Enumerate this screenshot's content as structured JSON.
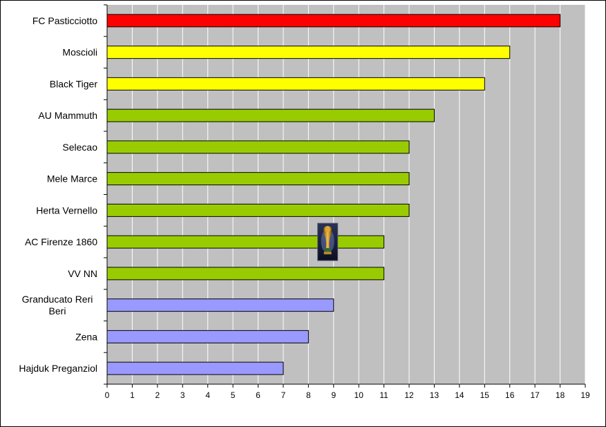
{
  "chart_data": {
    "type": "bar",
    "orientation": "horizontal",
    "title": "",
    "xlabel": "",
    "ylabel": "",
    "categories": [
      "FC Pasticciotto",
      "Moscioli",
      "Black Tiger",
      "AU Mammuth",
      "Selecao",
      "Mele Marce",
      "Herta Vernello",
      "AC Firenze 1860",
      "VV NN",
      "Granducato Reri Beri",
      "Zena",
      "Hajduk Preganziol"
    ],
    "category_lines": [
      [
        "FC Pasticciotto"
      ],
      [
        "Moscioli"
      ],
      [
        "Black Tiger"
      ],
      [
        "AU Mammuth"
      ],
      [
        "Selecao"
      ],
      [
        "Mele Marce"
      ],
      [
        "Herta Vernello"
      ],
      [
        "AC Firenze 1860"
      ],
      [
        "VV NN"
      ],
      [
        "Granducato Reri",
        "Beri"
      ],
      [
        "Zena"
      ],
      [
        "Hajduk Preganziol"
      ]
    ],
    "values": [
      18,
      16,
      15,
      13,
      12,
      12,
      12,
      11,
      11,
      9,
      8,
      7
    ],
    "bar_colors": [
      "#FF0000",
      "#FFFF00",
      "#FFFF00",
      "#99CC00",
      "#99CC00",
      "#99CC00",
      "#99CC00",
      "#99CC00",
      "#99CC00",
      "#9999FF",
      "#9999FF",
      "#9999FF"
    ],
    "xlim": [
      0,
      19
    ],
    "xticks": [
      "0",
      "1",
      "2",
      "3",
      "4",
      "5",
      "6",
      "7",
      "8",
      "9",
      "10",
      "11",
      "12",
      "13",
      "14",
      "15",
      "16",
      "17",
      "18",
      "19"
    ],
    "grid": "vertical",
    "plot_background": "#C0C0C0",
    "grid_color": "#FFFFFF",
    "legend": "none",
    "trophy_icon": {
      "icon": "trophy-icon",
      "category": "AC Firenze 1860",
      "value": 8.75
    }
  }
}
